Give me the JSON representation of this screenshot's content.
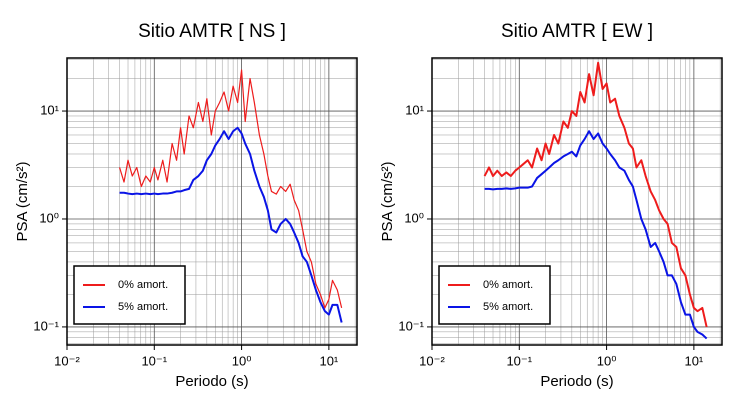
{
  "chart_data": [
    {
      "type": "line",
      "title": "Sitio AMTR [ NS ]",
      "x_label": "Periodo (s)",
      "y_label": "PSA (cm/s²)",
      "log_x": true,
      "log_y": true,
      "grid": true,
      "legend": "lower left",
      "xlim": [
        0.01,
        21
      ],
      "ylim": [
        0.068,
        31
      ],
      "xticks": [
        {
          "value": 0.01,
          "label": "10⁻²"
        },
        {
          "value": 0.1,
          "label": "10⁻¹"
        },
        {
          "value": 1,
          "label": "10⁰"
        },
        {
          "value": 10,
          "label": "10¹"
        }
      ],
      "yticks": [
        {
          "value": 0.1,
          "label": "10⁻¹"
        },
        {
          "value": 1,
          "label": "10⁰"
        },
        {
          "value": 10,
          "label": "10¹"
        }
      ],
      "xminor": [
        0.02,
        0.03,
        0.04,
        0.05,
        0.06,
        0.07,
        0.08,
        0.09,
        0.2,
        0.3,
        0.4,
        0.5,
        0.6,
        0.7,
        0.8,
        0.9,
        2,
        3,
        4,
        5,
        6,
        7,
        8,
        9,
        20
      ],
      "yminor": [
        0.07,
        0.08,
        0.09,
        0.2,
        0.3,
        0.4,
        0.5,
        0.6,
        0.7,
        0.8,
        0.9,
        2,
        3,
        4,
        5,
        6,
        7,
        8,
        9,
        20,
        30
      ],
      "x": [
        0.04,
        0.045,
        0.05,
        0.056,
        0.063,
        0.071,
        0.08,
        0.09,
        0.1,
        0.11,
        0.125,
        0.14,
        0.16,
        0.18,
        0.2,
        0.22,
        0.25,
        0.28,
        0.32,
        0.36,
        0.4,
        0.45,
        0.5,
        0.56,
        0.63,
        0.71,
        0.8,
        0.9,
        1.0,
        1.1,
        1.25,
        1.4,
        1.6,
        1.8,
        2.0,
        2.2,
        2.5,
        2.8,
        3.2,
        3.6,
        4.0,
        4.5,
        5.0,
        5.6,
        6.3,
        7.1,
        8.0,
        9.0,
        10,
        11,
        12.5,
        14
      ],
      "series": [
        {
          "name": "0% amort.",
          "color": "#ee1c1c",
          "line_width": 1.2,
          "values": [
            3.0,
            2.2,
            3.5,
            2.5,
            3.0,
            2.0,
            2.5,
            2.2,
            3.0,
            2.3,
            3.5,
            2.2,
            5,
            3.5,
            7,
            4,
            9,
            7,
            12,
            8,
            13,
            6,
            10,
            12,
            15,
            10,
            17,
            12,
            24,
            8,
            20,
            12,
            6,
            4,
            2.5,
            1.8,
            1.7,
            2.0,
            1.8,
            2.1,
            1.5,
            1.2,
            0.8,
            0.5,
            0.4,
            0.25,
            0.2,
            0.15,
            0.18,
            0.27,
            0.22,
            0.15
          ]
        },
        {
          "name": "5% amort.",
          "color": "#0a14e6",
          "line_width": 2,
          "values": [
            1.75,
            1.75,
            1.72,
            1.7,
            1.72,
            1.7,
            1.72,
            1.7,
            1.72,
            1.7,
            1.72,
            1.72,
            1.75,
            1.8,
            1.8,
            1.85,
            1.9,
            2.3,
            2.5,
            2.8,
            3.5,
            4,
            4.8,
            5.5,
            6.5,
            5.5,
            6.5,
            7,
            6.2,
            5,
            4,
            2.8,
            2.0,
            1.6,
            1.2,
            0.8,
            0.75,
            0.9,
            1.0,
            0.9,
            0.75,
            0.6,
            0.45,
            0.4,
            0.3,
            0.22,
            0.17,
            0.14,
            0.13,
            0.16,
            0.16,
            0.11
          ]
        }
      ]
    },
    {
      "type": "line",
      "title": "Sitio AMTR [ EW ]",
      "x_label": "Periodo (s)",
      "y_label": "PSA (cm/s²)",
      "log_x": true,
      "log_y": true,
      "grid": true,
      "legend": "lower left",
      "xlim": [
        0.01,
        21
      ],
      "ylim": [
        0.068,
        31
      ],
      "xticks": [
        {
          "value": 0.01,
          "label": "10⁻²"
        },
        {
          "value": 0.1,
          "label": "10⁻¹"
        },
        {
          "value": 1,
          "label": "10⁰"
        },
        {
          "value": 10,
          "label": "10¹"
        }
      ],
      "yticks": [
        {
          "value": 0.1,
          "label": "10⁻¹"
        },
        {
          "value": 1,
          "label": "10⁰"
        },
        {
          "value": 10,
          "label": "10¹"
        }
      ],
      "xminor": [
        0.02,
        0.03,
        0.04,
        0.05,
        0.06,
        0.07,
        0.08,
        0.09,
        0.2,
        0.3,
        0.4,
        0.5,
        0.6,
        0.7,
        0.8,
        0.9,
        2,
        3,
        4,
        5,
        6,
        7,
        8,
        9,
        20
      ],
      "yminor": [
        0.07,
        0.08,
        0.09,
        0.2,
        0.3,
        0.4,
        0.5,
        0.6,
        0.7,
        0.8,
        0.9,
        2,
        3,
        4,
        5,
        6,
        7,
        8,
        9,
        20,
        30
      ],
      "x": [
        0.04,
        0.045,
        0.05,
        0.056,
        0.063,
        0.071,
        0.08,
        0.09,
        0.1,
        0.11,
        0.125,
        0.14,
        0.16,
        0.18,
        0.2,
        0.22,
        0.25,
        0.28,
        0.32,
        0.36,
        0.4,
        0.45,
        0.5,
        0.56,
        0.63,
        0.71,
        0.8,
        0.9,
        1.0,
        1.1,
        1.25,
        1.4,
        1.6,
        1.8,
        2.0,
        2.2,
        2.5,
        2.8,
        3.2,
        3.6,
        4.0,
        4.5,
        5.0,
        5.6,
        6.3,
        7.1,
        8.0,
        9.0,
        10,
        11,
        12.5,
        14
      ],
      "series": [
        {
          "name": "0% amort.",
          "color": "#ee1c1c",
          "line_width": 2,
          "values": [
            2.5,
            3.0,
            2.5,
            2.8,
            2.5,
            2.7,
            2.5,
            2.8,
            3.0,
            3.2,
            3.5,
            3.0,
            4.5,
            3.5,
            5,
            4,
            6,
            5,
            8,
            7,
            10,
            9,
            15,
            12,
            22,
            14,
            28,
            16,
            18,
            12,
            13,
            9,
            7,
            5,
            4.5,
            3,
            3.5,
            2.5,
            1.8,
            1.5,
            1.2,
            1.0,
            0.9,
            0.6,
            0.55,
            0.35,
            0.3,
            0.2,
            0.15,
            0.14,
            0.15,
            0.1
          ]
        },
        {
          "name": "5% amort.",
          "color": "#0a14e6",
          "line_width": 2,
          "values": [
            1.9,
            1.9,
            1.88,
            1.9,
            1.9,
            1.92,
            1.9,
            1.92,
            1.95,
            1.95,
            1.95,
            2.0,
            2.4,
            2.6,
            2.8,
            3.0,
            3.3,
            3.5,
            3.8,
            4,
            4.2,
            3.8,
            4.8,
            5.5,
            6.5,
            5.5,
            6.2,
            5,
            4.5,
            4,
            3.5,
            3,
            2.8,
            2.3,
            2.0,
            1.5,
            1.0,
            0.8,
            0.55,
            0.6,
            0.5,
            0.4,
            0.3,
            0.3,
            0.25,
            0.17,
            0.13,
            0.13,
            0.1,
            0.09,
            0.085,
            0.078
          ]
        }
      ]
    }
  ]
}
